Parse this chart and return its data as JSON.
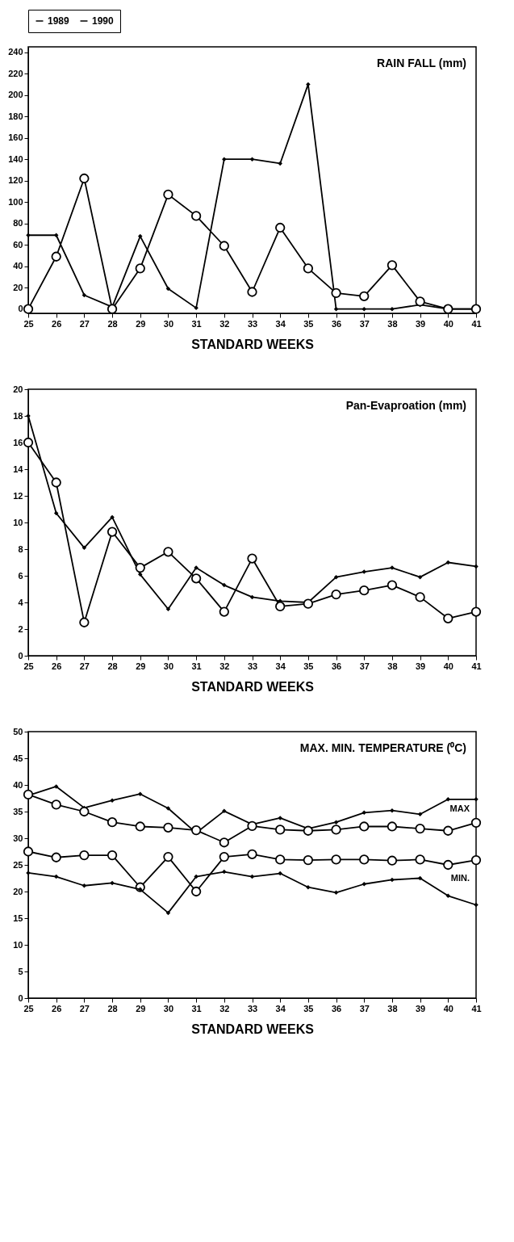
{
  "chart_data": [
    {
      "type": "line",
      "title": "RAIN FALL (mm)",
      "xlabel": "STANDARD WEEKS",
      "x": [
        25,
        26,
        27,
        28,
        29,
        30,
        31,
        32,
        33,
        34,
        35,
        36,
        37,
        38,
        39,
        40,
        41
      ],
      "xlim": [
        25,
        41
      ],
      "xticks": [
        25,
        26,
        27,
        28,
        29,
        30,
        31,
        32,
        33,
        34,
        35,
        36,
        37,
        38,
        39,
        40,
        41
      ],
      "ylim": [
        -4,
        245
      ],
      "yticks": [
        0,
        20,
        40,
        60,
        80,
        100,
        120,
        140,
        160,
        180,
        200,
        220,
        240
      ],
      "grid": false,
      "legend": "top",
      "line_style": "solid",
      "series": [
        {
          "name": "1989",
          "color": "#000000",
          "marker": "diamond",
          "values": [
            69,
            69,
            13,
            2,
            68,
            19,
            1,
            140,
            140,
            136,
            210,
            0,
            0,
            0,
            4,
            0,
            0
          ]
        },
        {
          "name": "1990",
          "color": "#000000",
          "marker": "circle",
          "values": [
            0,
            49,
            122,
            0,
            38,
            107,
            87,
            59,
            16,
            76,
            38,
            15,
            12,
            41,
            7,
            0,
            0
          ]
        }
      ]
    },
    {
      "type": "line",
      "title": "Pan-Evaproation (mm)",
      "xlabel": "STANDARD WEEKS",
      "x": [
        25,
        26,
        27,
        28,
        29,
        30,
        31,
        32,
        33,
        34,
        35,
        36,
        37,
        38,
        39,
        40,
        41
      ],
      "xlim": [
        25,
        41
      ],
      "xticks": [
        25,
        26,
        27,
        28,
        29,
        30,
        31,
        32,
        33,
        34,
        35,
        36,
        37,
        38,
        39,
        40,
        41
      ],
      "ylim": [
        0,
        20
      ],
      "yticks": [
        0,
        2,
        4,
        6,
        8,
        10,
        12,
        14,
        16,
        18,
        20
      ],
      "grid": false,
      "legend": false,
      "line_style": "solid",
      "series": [
        {
          "name": "1989",
          "color": "#000000",
          "marker": "diamond",
          "values": [
            18,
            10.7,
            8.1,
            10.4,
            6.1,
            3.5,
            6.6,
            5.3,
            4.4,
            4.1,
            4.0,
            5.9,
            6.3,
            6.6,
            5.9,
            7.0,
            6.7
          ]
        },
        {
          "name": "1990",
          "color": "#000000",
          "marker": "circle",
          "values": [
            16,
            13,
            2.5,
            9.3,
            6.6,
            7.8,
            5.8,
            3.3,
            7.3,
            3.7,
            3.9,
            4.6,
            4.9,
            5.3,
            4.4,
            2.8,
            3.3
          ]
        }
      ]
    },
    {
      "type": "line",
      "title": "MAX. MIN. TEMPERATURE (⁰C)",
      "xlabel": "STANDARD WEEKS",
      "x": [
        25,
        26,
        27,
        28,
        29,
        30,
        31,
        32,
        33,
        34,
        35,
        36,
        37,
        38,
        39,
        40,
        41
      ],
      "xlim": [
        25,
        41
      ],
      "xticks": [
        25,
        26,
        27,
        28,
        29,
        30,
        31,
        32,
        33,
        34,
        35,
        36,
        37,
        38,
        39,
        40,
        41
      ],
      "ylim": [
        0,
        50
      ],
      "yticks": [
        0,
        5,
        10,
        15,
        20,
        25,
        30,
        35,
        40,
        45,
        50
      ],
      "grid": false,
      "legend": false,
      "line_style": "solid",
      "annotations": [
        "MAX",
        "MIN."
      ],
      "series": [
        {
          "name": "1989",
          "color": "#000000",
          "marker": "diamond",
          "values": [
            38.0,
            39.7,
            35.7,
            37.1,
            38.3,
            35.6,
            31.0,
            35.1,
            32.6,
            33.8,
            31.8,
            33.0,
            34.8,
            35.2,
            34.5,
            37.3,
            37.3
          ]
        },
        {
          "name": "1990",
          "color": "#000000",
          "marker": "circle",
          "values": [
            38.2,
            36.3,
            35.0,
            33.0,
            32.2,
            32.0,
            31.5,
            29.2,
            32.3,
            31.6,
            31.4,
            31.6,
            32.2,
            32.2,
            31.8,
            31.4,
            32.9
          ]
        },
        {
          "name": "1990",
          "color": "#000000",
          "marker": "circle",
          "values": [
            27.5,
            26.4,
            26.8,
            26.8,
            20.8,
            26.5,
            20.0,
            26.5,
            27.0,
            26.0,
            25.9,
            26.0,
            26.0,
            25.8,
            26.0,
            25.0,
            25.9
          ]
        },
        {
          "name": "1989",
          "color": "#000000",
          "marker": "diamond",
          "values": [
            23.5,
            22.8,
            21.1,
            21.6,
            20.4,
            16.0,
            22.8,
            23.7,
            22.8,
            23.4,
            20.8,
            19.8,
            21.4,
            22.2,
            22.5,
            19.2,
            17.5
          ]
        }
      ]
    }
  ]
}
